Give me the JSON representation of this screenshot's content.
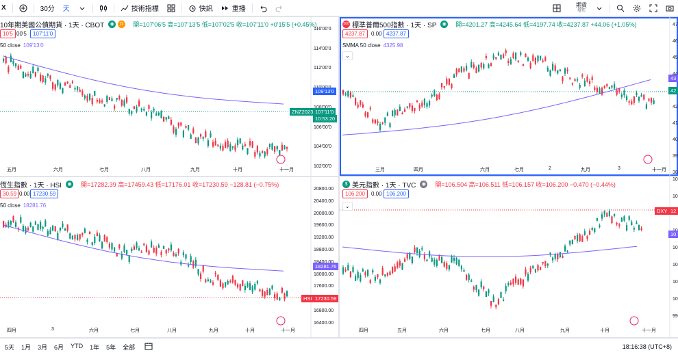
{
  "topbar": {
    "symbol_fragment": "X",
    "interval": "30分",
    "interval_day": "天",
    "indicators": "技術指標",
    "alert": "快訊",
    "replay": "重播",
    "right_label": "期貨",
    "right_sublabel": "發布"
  },
  "panels": [
    {
      "title": "10年期美國公債期貨 · 1天 · CBOT",
      "badge": "D",
      "ohlc": "開=107'06'5 高=107'13'5 低=107'02'5 收=107'11'0 +0'15'5 (+0.45%)",
      "ohlc_color": "green",
      "box1": "10'5",
      "box_mid": "00'5",
      "box2": "107'11'0",
      "ma_label": "50 close",
      "ma_value": "109'13'0",
      "yaxis": [
        "116'00'0",
        "114'00'0",
        "112'00'0",
        "110'00'0",
        "108'00'0",
        "106'00'0",
        "104'00'0",
        "102'00'0"
      ],
      "xaxis": [
        "五月",
        "六月",
        "七月",
        "八月",
        "九月",
        "十月",
        "十一月"
      ],
      "tags": [
        {
          "text": "109'13'0",
          "color": "#2962ff"
        },
        {
          "text": "ZNZ2023",
          "color": "#089981"
        },
        {
          "text": "107'11'0",
          "color": "#089981"
        },
        {
          "text": "10:53:20",
          "color": "#089981"
        }
      ]
    },
    {
      "title": "標準普爾500指數 · 1天 · SP",
      "badge": "500",
      "ohlc": "開=4201.27 高=4245.64 低=4197.74 收=4237.87 +44.06 (+1.05%)",
      "ohlc_color": "green",
      "box1": "4237.87",
      "box_mid": "0.00",
      "box2": "4237.87",
      "ma_label": "SMMA 50 close",
      "ma_value": "4325.98",
      "yaxis": [
        "47",
        "46",
        "45",
        "44",
        "43",
        "42",
        "41",
        "40",
        "39",
        "38"
      ],
      "xaxis": [
        "三月",
        "四月",
        "六月",
        "七月",
        "2",
        "九月",
        "3",
        "十一月"
      ],
      "tags": [
        {
          "text": "43",
          "color": "#7b61ff"
        },
        {
          "text": "42",
          "color": "#089981"
        }
      ]
    },
    {
      "title": "恆生指數 · 1天 · HSI",
      "badge": "",
      "ohlc": "開=17282.39 高=17459.43 低=17176.01 收=17230.59 −128.81 (−0.75%)",
      "ohlc_color": "red",
      "box1": "30.59",
      "box_mid": "0.00",
      "box2": "17230.59",
      "ma_label": "50 close",
      "ma_value": "18281.76",
      "yaxis": [
        "20800.00",
        "20400.00",
        "20000.00",
        "19600.00",
        "19200.00",
        "18800.00",
        "18400.00",
        "18000.00",
        "17600.00",
        "17200.00",
        "16800.00",
        "16400.00"
      ],
      "xaxis": [
        "四月",
        "3",
        "六月",
        "七月",
        "八月",
        "九月",
        "十月",
        "十一月"
      ],
      "tags": [
        {
          "text": "18281.76",
          "color": "#7b61ff"
        },
        {
          "text": "HSI",
          "color": "#f23645"
        },
        {
          "text": "17230.59",
          "color": "#f23645"
        }
      ]
    },
    {
      "title": "美元指數 · 1天 · TVC",
      "badge": "$",
      "ohlc": "開=106.504 高=106.511 低=106.157 收=106.200 −0.470 (−0.44%)",
      "ohlc_color": "red",
      "box1": "106.200",
      "box_mid": "0.00",
      "box2": "106.200",
      "ma_label": "",
      "ma_value": "",
      "yaxis": [
        "10",
        "10",
        "10",
        "10",
        "10",
        "10",
        "10",
        "10",
        "99"
      ],
      "xaxis": [
        "四月",
        "五月",
        "六月",
        "七月",
        "八月",
        "九月",
        "十月",
        "十一月"
      ],
      "tags": [
        {
          "text": "DXY",
          "color": "#f23645"
        },
        {
          "text": "12",
          "color": "#f23645"
        },
        {
          "text": "10",
          "color": "#7b61ff"
        }
      ]
    }
  ],
  "bottombar": {
    "ranges": [
      "5天",
      "1月",
      "3月",
      "6月",
      "YTD",
      "1年",
      "5年",
      "全部"
    ],
    "clock": "18:16:38 (UTC+8)"
  }
}
